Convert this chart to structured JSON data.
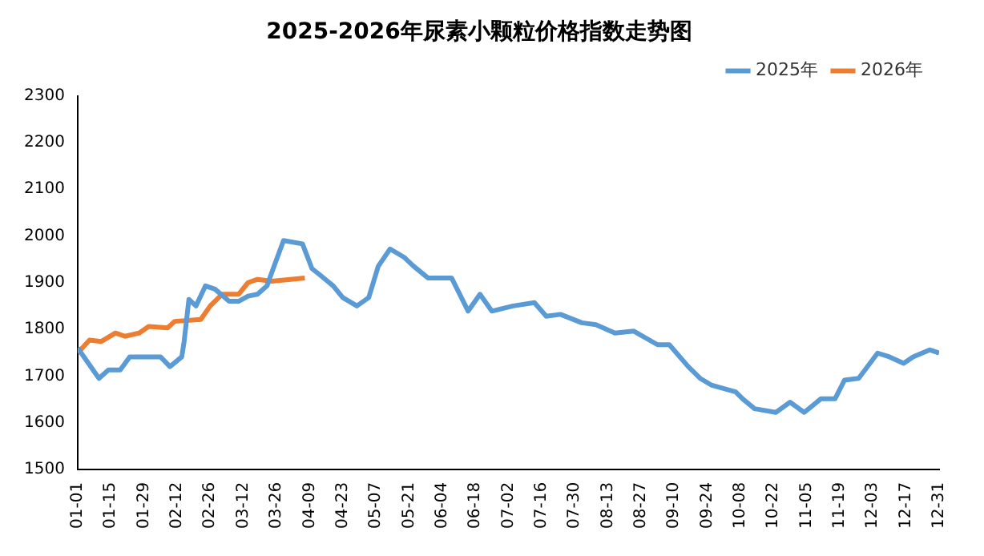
{
  "chart_data": {
    "type": "line",
    "title": "2025-2026年尿素小颗粒价格指数走势图",
    "legend": "top right",
    "grid": false,
    "marker": "none",
    "line_style": "solid",
    "ylim": [
      1500,
      2300
    ],
    "yticks": [
      1500,
      1600,
      1700,
      1800,
      1900,
      2000,
      2100,
      2200,
      2300
    ],
    "xlim": [
      "--01-01",
      "--12-31"
    ],
    "xticks": [
      {
        "value": "--01-01",
        "label": "01-01"
      },
      {
        "value": "--01-15",
        "label": "01-15"
      },
      {
        "value": "--01-29",
        "label": "01-29"
      },
      {
        "value": "--02-12",
        "label": "02-12"
      },
      {
        "value": "--02-26",
        "label": "02-26"
      },
      {
        "value": "--03-12",
        "label": "03-12"
      },
      {
        "value": "--03-26",
        "label": "03-26"
      },
      {
        "value": "--04-09",
        "label": "04-09"
      },
      {
        "value": "--04-23",
        "label": "04-23"
      },
      {
        "value": "--05-07",
        "label": "05-07"
      },
      {
        "value": "--05-21",
        "label": "05-21"
      },
      {
        "value": "--06-04",
        "label": "06-04"
      },
      {
        "value": "--06-18",
        "label": "06-18"
      },
      {
        "value": "--07-02",
        "label": "07-02"
      },
      {
        "value": "--07-16",
        "label": "07-16"
      },
      {
        "value": "--07-30",
        "label": "07-30"
      },
      {
        "value": "--08-13",
        "label": "08-13"
      },
      {
        "value": "--08-27",
        "label": "08-27"
      },
      {
        "value": "--09-10",
        "label": "09-10"
      },
      {
        "value": "--09-24",
        "label": "09-24"
      },
      {
        "value": "--10-08",
        "label": "10-08"
      },
      {
        "value": "--10-22",
        "label": "10-22"
      },
      {
        "value": "--11-05",
        "label": "11-05"
      },
      {
        "value": "--11-19",
        "label": "11-19"
      },
      {
        "value": "--12-03",
        "label": "12-03"
      },
      {
        "value": "--12-17",
        "label": "12-17"
      },
      {
        "value": "--12-31",
        "label": "12-31"
      }
    ],
    "series": [
      {
        "name": "2025年",
        "color": "#5b9bd5",
        "x": [
          "--01-01",
          "--01-10",
          "--01-14",
          "--01-19",
          "--01-23",
          "--02-05",
          "--02-09",
          "--02-14",
          "--02-15",
          "--02-17",
          "--02-20",
          "--02-24",
          "--02-28",
          "--03-06",
          "--03-10",
          "--03-14",
          "--03-18",
          "--03-22",
          "--03-25",
          "--03-29",
          "--04-06",
          "--04-10",
          "--04-13",
          "--04-19",
          "--04-23",
          "--04-29",
          "--05-04",
          "--05-08",
          "--05-13",
          "--05-19",
          "--05-23",
          "--05-29",
          "--06-08",
          "--06-15",
          "--06-20",
          "--06-25",
          "--07-04",
          "--07-13",
          "--07-18",
          "--07-24",
          "--08-02",
          "--08-08",
          "--08-16",
          "--08-24",
          "--09-03",
          "--09-08",
          "--09-16",
          "--09-21",
          "--09-26",
          "--10-06",
          "--10-09",
          "--10-14",
          "--10-23",
          "--10-29",
          "--11-04",
          "--11-11",
          "--11-17",
          "--11-21",
          "--11-27",
          "--12-05",
          "--12-10",
          "--12-16",
          "--12-20",
          "--12-27",
          "--12-31"
        ],
        "values": [
          1760,
          1695,
          1713,
          1713,
          1741,
          1741,
          1720,
          1741,
          1774,
          1864,
          1850,
          1893,
          1886,
          1860,
          1860,
          1871,
          1875,
          1893,
          1935,
          1990,
          1983,
          1930,
          1918,
          1893,
          1868,
          1850,
          1868,
          1935,
          1972,
          1954,
          1935,
          1910,
          1910,
          1839,
          1875,
          1839,
          1850,
          1857,
          1828,
          1832,
          1814,
          1810,
          1792,
          1796,
          1767,
          1767,
          1720,
          1695,
          1680,
          1666,
          1651,
          1630,
          1622,
          1644,
          1622,
          1651,
          1651,
          1691,
          1695,
          1749,
          1741,
          1727,
          1741,
          1756,
          1749
        ]
      },
      {
        "name": "2026年",
        "color": "#ed7d31",
        "x": [
          "--01-01",
          "--01-06",
          "--01-11",
          "--01-17",
          "--01-21",
          "--01-27",
          "--01-31",
          "--02-08",
          "--02-11",
          "--02-22",
          "--02-26",
          "--03-03",
          "--03-10",
          "--03-14",
          "--03-18",
          "--03-24",
          "--04-01",
          "--04-07"
        ],
        "values": [
          1749,
          1777,
          1774,
          1792,
          1785,
          1792,
          1806,
          1803,
          1817,
          1821,
          1850,
          1875,
          1875,
          1900,
          1907,
          1903,
          1907,
          1910
        ]
      }
    ]
  }
}
